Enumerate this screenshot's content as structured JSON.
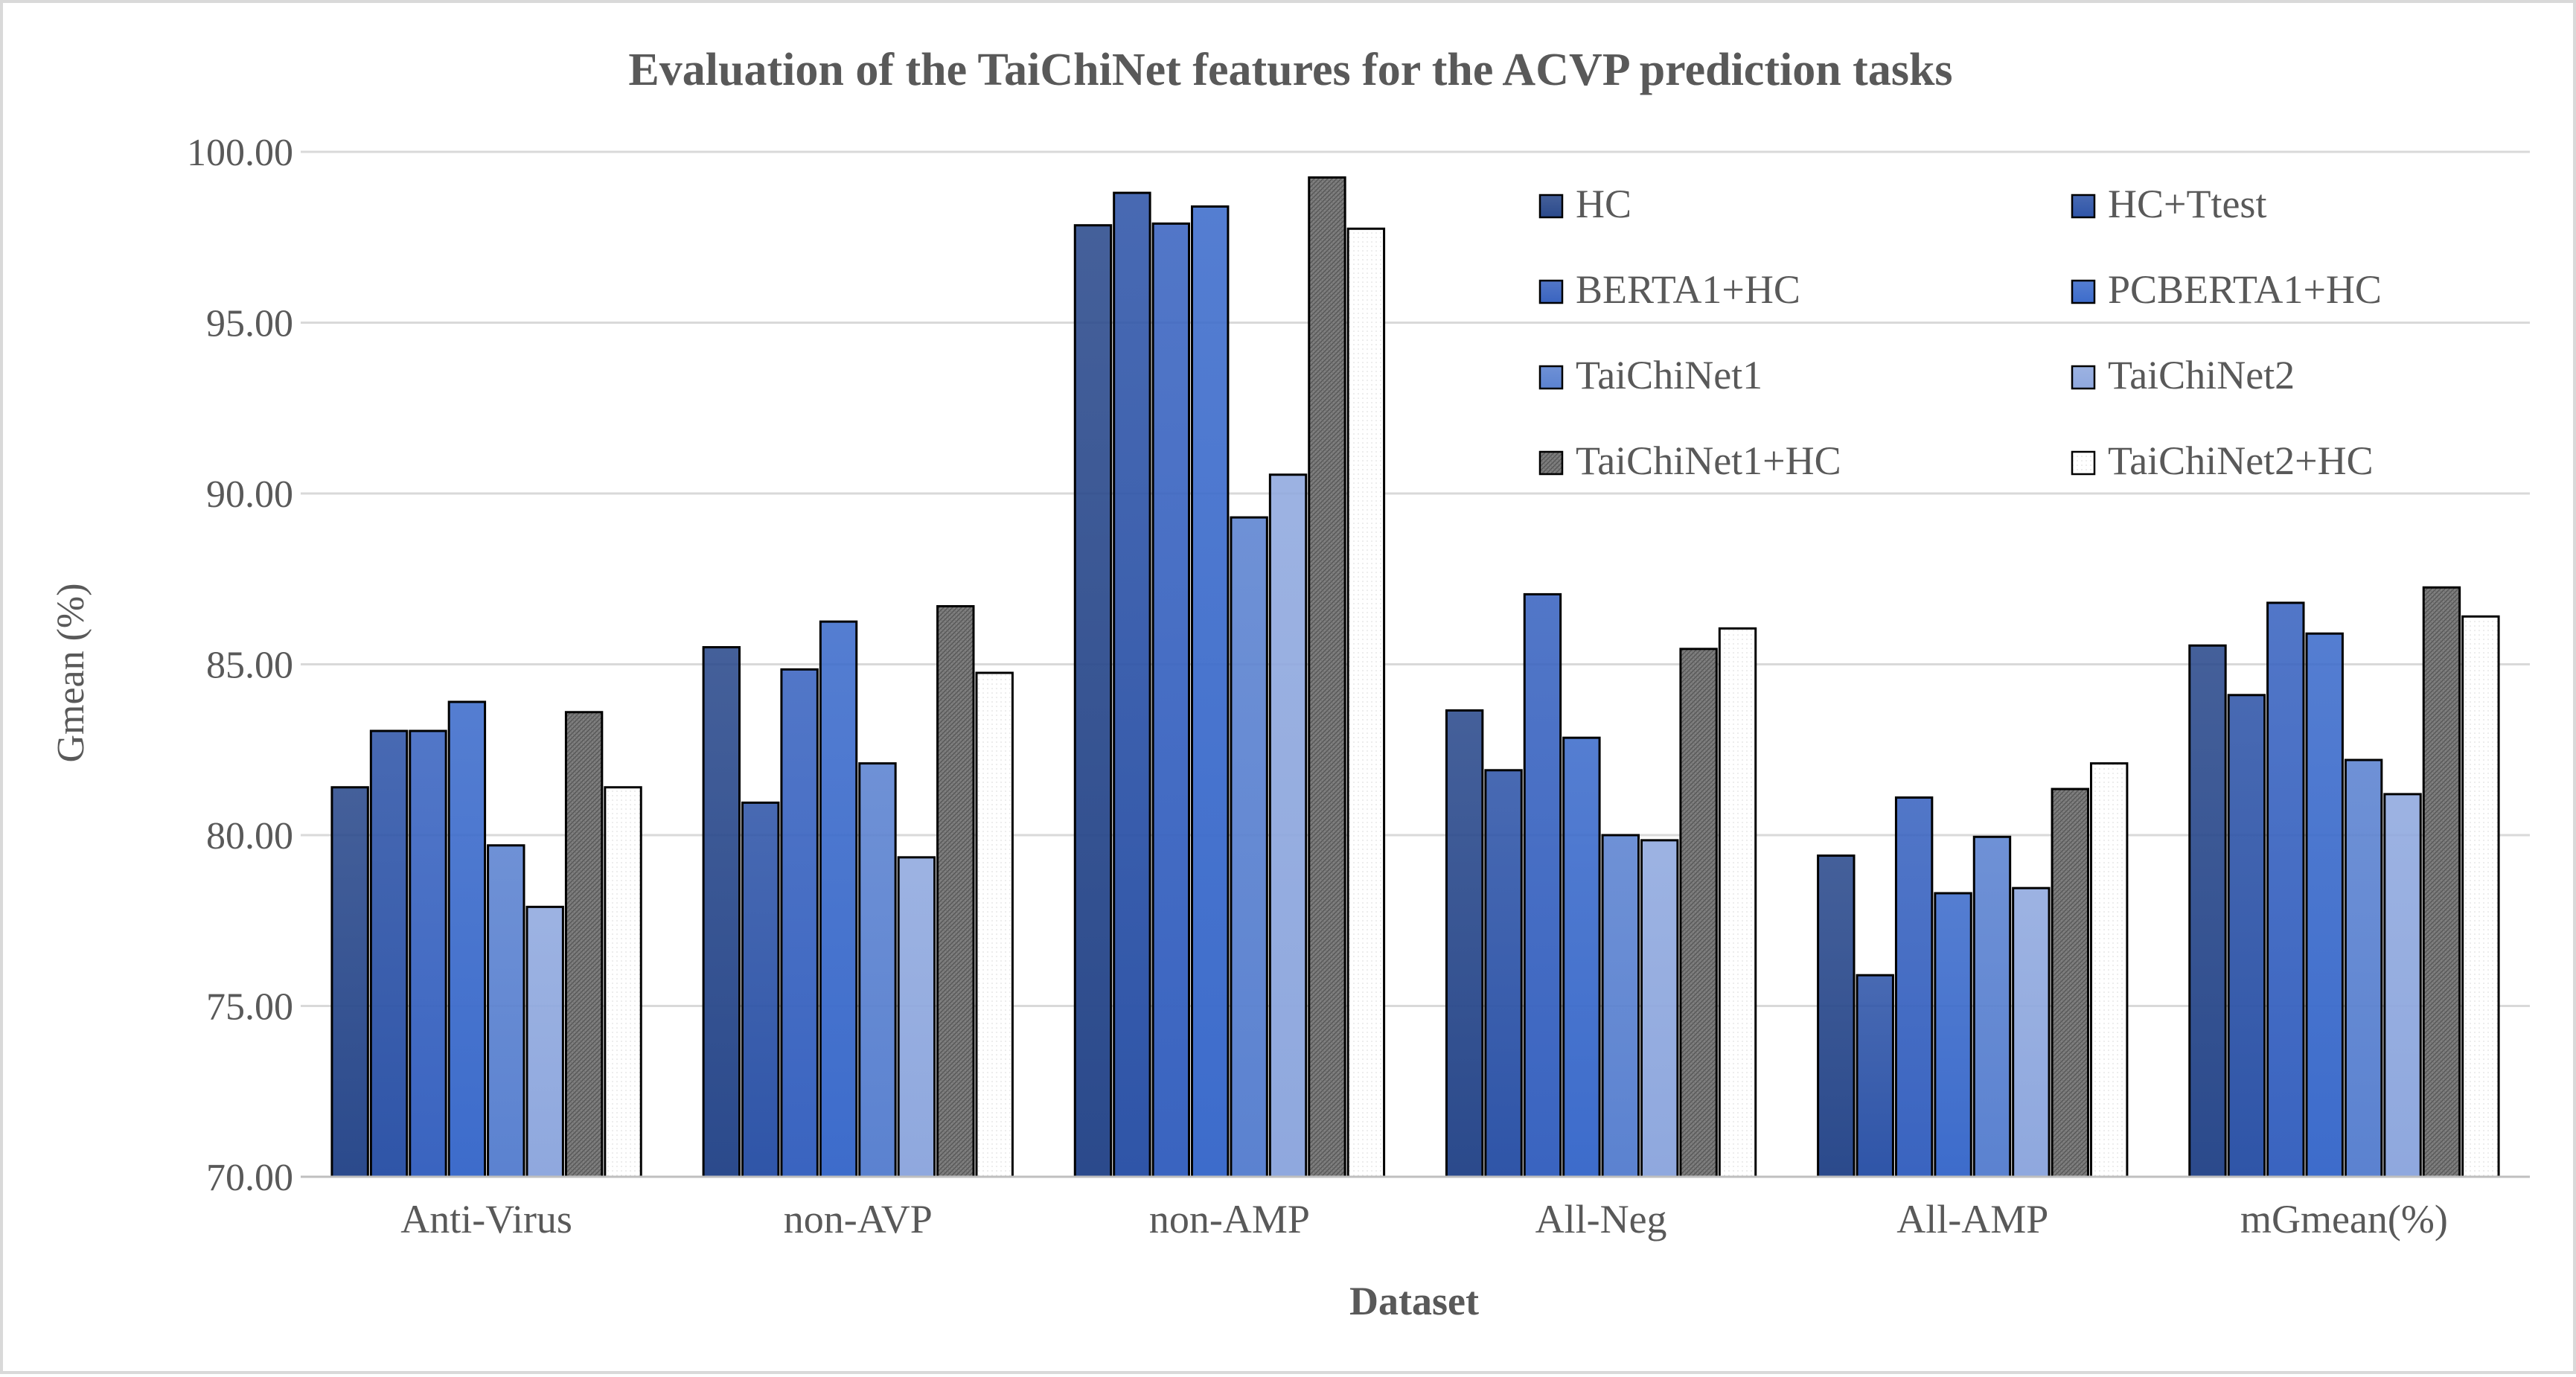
{
  "chart_data": {
    "type": "bar",
    "title": "Evaluation of the TaiChiNet features for the ACVP prediction tasks",
    "xlabel": "Dataset",
    "ylabel": "Gmean (%)",
    "ylim": [
      70,
      100
    ],
    "yticks": [
      "70.00",
      "75.00",
      "80.00",
      "85.00",
      "90.00",
      "95.00",
      "100.00"
    ],
    "grid": true,
    "legend_position": "top-right",
    "categories": [
      "Anti-Virus",
      "non-AVP",
      "non-AMP",
      "All-Neg",
      "All-AMP",
      "mGmean(%)"
    ],
    "series": [
      {
        "name": "HC",
        "values": [
          81.4,
          85.5,
          97.85,
          83.65,
          79.4,
          85.55
        ],
        "color": "#2b4a8c",
        "style": "gradient"
      },
      {
        "name": "HC+Ttest",
        "values": [
          83.05,
          80.95,
          98.8,
          81.9,
          75.9,
          84.1
        ],
        "color": "#2f55a8",
        "style": "gradient"
      },
      {
        "name": "BERTA1+HC",
        "values": [
          83.05,
          84.85,
          97.9,
          87.05,
          81.1,
          86.8
        ],
        "color": "#3a64c0",
        "style": "gradient"
      },
      {
        "name": "PCBERTA1+HC",
        "values": [
          83.9,
          86.25,
          98.4,
          82.85,
          78.3,
          85.9
        ],
        "color": "#3d6ccb",
        "style": "gradient"
      },
      {
        "name": "TaiChiNet1",
        "values": [
          79.7,
          82.1,
          89.3,
          80.0,
          79.95,
          82.2
        ],
        "color": "#5b82d0",
        "style": "gradient"
      },
      {
        "name": "TaiChiNet2",
        "values": [
          77.9,
          79.35,
          90.55,
          79.85,
          78.45,
          81.2
        ],
        "color": "#8fa8de",
        "style": "gradient"
      },
      {
        "name": "TaiChiNet1+HC",
        "values": [
          83.6,
          86.7,
          99.25,
          85.45,
          81.35,
          87.25
        ],
        "color": "#7f7f7f",
        "style": "hatched"
      },
      {
        "name": "TaiChiNet2+HC",
        "values": [
          81.4,
          84.75,
          97.75,
          86.05,
          82.1,
          86.4
        ],
        "color": "#ffffff",
        "style": "outline"
      }
    ]
  }
}
